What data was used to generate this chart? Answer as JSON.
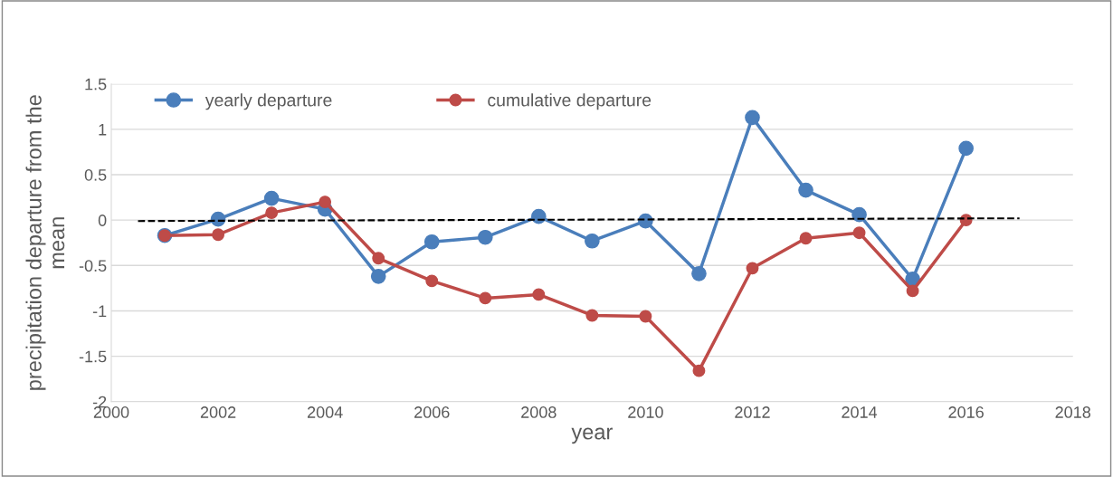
{
  "chart_data": {
    "type": "line",
    "xlabel": "year",
    "ylabel": "precipitation departure from the\nmean",
    "x": [
      2001,
      2002,
      2003,
      2004,
      2005,
      2006,
      2007,
      2008,
      2009,
      2010,
      2011,
      2012,
      2013,
      2014,
      2015,
      2016
    ],
    "series": [
      {
        "name": "yearly departure",
        "color": "#4a7ebb",
        "values": [
          -0.17,
          0.01,
          0.24,
          0.12,
          -0.62,
          -0.24,
          -0.19,
          0.04,
          -0.23,
          -0.01,
          -0.59,
          1.13,
          0.33,
          0.06,
          -0.65,
          0.79
        ]
      },
      {
        "name": "cumulative departure",
        "color": "#be4b48",
        "values": [
          -0.17,
          -0.16,
          0.08,
          0.2,
          -0.42,
          -0.67,
          -0.86,
          -0.82,
          -1.05,
          -1.06,
          -1.66,
          -0.53,
          -0.2,
          -0.14,
          -0.78,
          0.0
        ]
      },
      {
        "type": "line",
        "x": [
          2000.5,
          2017
        ],
        "color": "#000000",
        "values": [
          -0.01,
          0.02
        ],
        "line_style": "dashed",
        "marker": "none"
      }
    ],
    "xlim": [
      2000,
      2018
    ],
    "xticks": [
      2000,
      2002,
      2004,
      2006,
      2008,
      2010,
      2012,
      2014,
      2016,
      2018
    ],
    "ylim": [
      -2,
      1.5
    ],
    "yticks": [
      -2,
      -1.5,
      -1,
      -0.5,
      0,
      0.5,
      1,
      1.5
    ],
    "grid": "y",
    "legend": "top left",
    "marker": "circle",
    "line_style": "solid"
  }
}
